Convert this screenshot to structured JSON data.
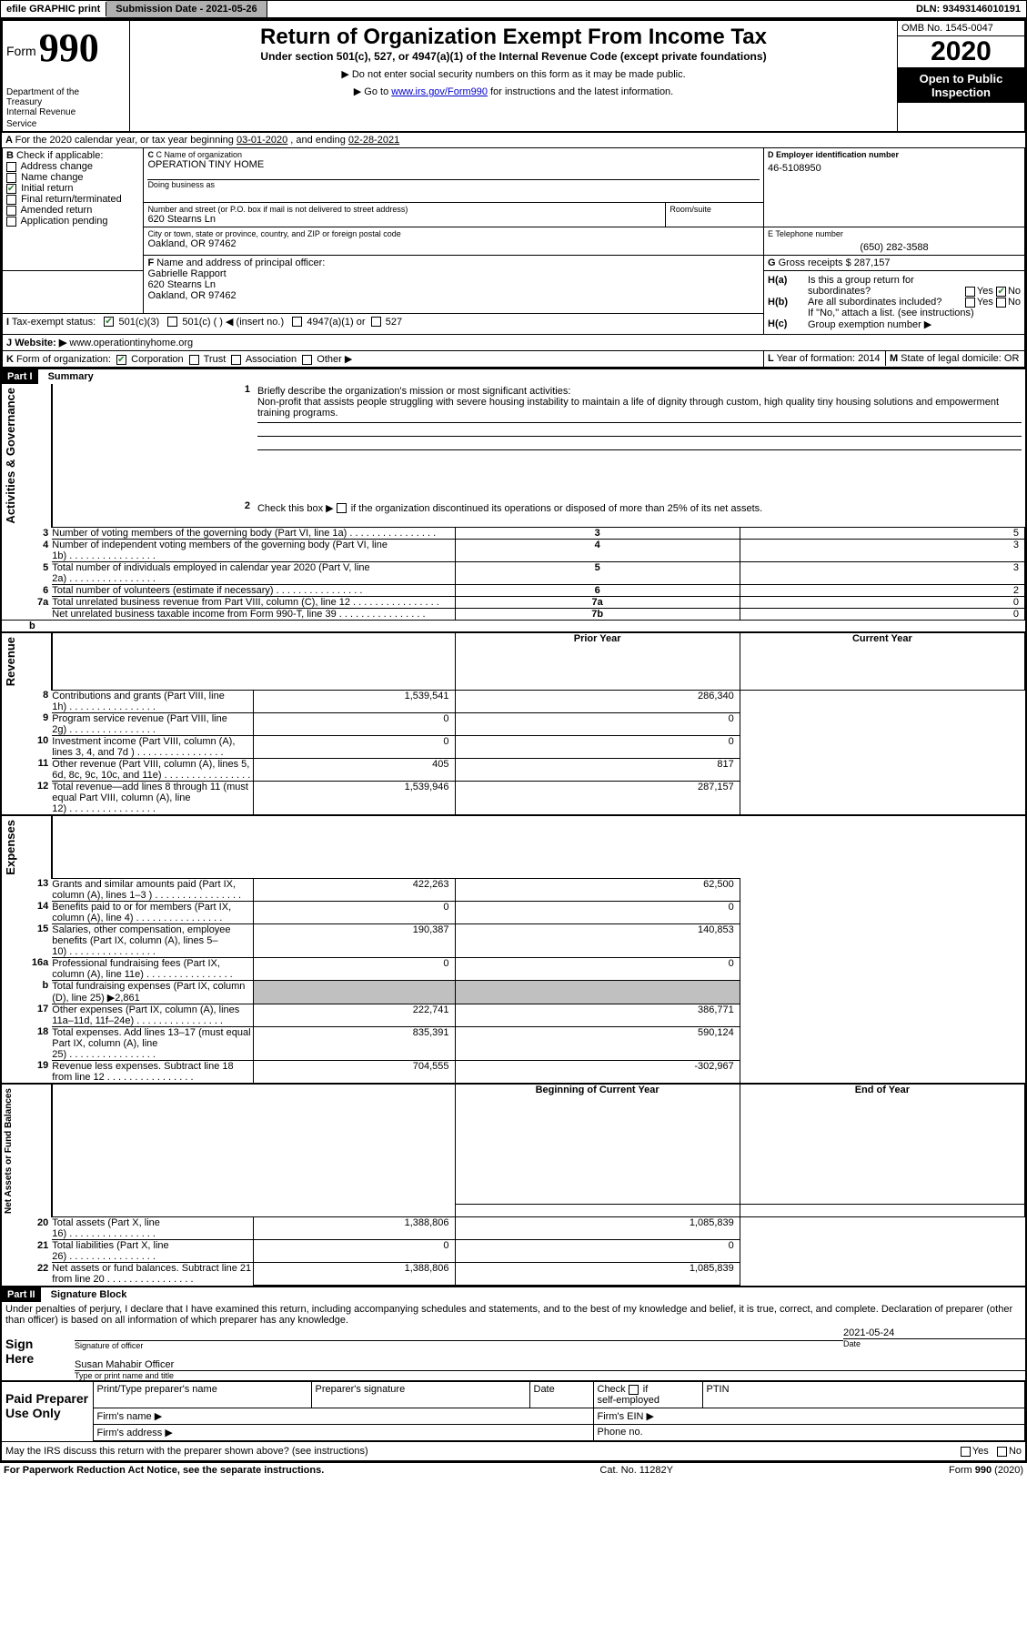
{
  "topbar": {
    "efile": "efile GRAPHIC print",
    "submission_label": "Submission Date - ",
    "submission_date": "2021-05-26",
    "dln_label": "DLN: ",
    "dln": "93493146010191"
  },
  "header": {
    "form_word": "Form",
    "form_no": "990",
    "dept1": "Department of the",
    "dept2": "Treasury",
    "dept3": "Internal Revenue",
    "dept4": "Service",
    "title": "Return of Organization Exempt From Income Tax",
    "subtitle": "Under section 501(c), 527, or 4947(a)(1) of the Internal Revenue Code (except private foundations)",
    "instr1": "Do not enter social security numbers on this form as it may be made public.",
    "instr2a": "Go to ",
    "instr2_link": "www.irs.gov/Form990",
    "instr2b": " for instructions and the latest information.",
    "omb": "OMB No. 1545-0047",
    "year": "2020",
    "open1": "Open to Public",
    "open2": "Inspection"
  },
  "line_a": {
    "text": "For the 2020 calendar year, or tax year beginning ",
    "begin": "03-01-2020",
    "mid": " , and ending ",
    "end": "02-28-2021"
  },
  "box_b": {
    "label": "B",
    "check_label": "Check if applicable:",
    "opts": [
      "Address change",
      "Name change",
      "Initial return",
      "Final return/terminated",
      "Amended return",
      "Application pending"
    ],
    "checked_idx": 2
  },
  "box_c": {
    "name_label": "C Name of organization",
    "name": "OPERATION TINY HOME",
    "dba_label": "Doing business as",
    "dba": "",
    "street_label": "Number and street (or P.O. box if mail is not delivered to street address)",
    "room_label": "Room/suite",
    "street": "620 Stearns Ln",
    "city_label": "City or town, state or province, country, and ZIP or foreign postal code",
    "city": "Oakland, OR  97462"
  },
  "box_d": {
    "label": "D Employer identification number",
    "val": "46-5108950"
  },
  "box_e": {
    "label": "E Telephone number",
    "val": "(650) 282-3588"
  },
  "box_g": {
    "label": "G",
    "text": "Gross receipts $ ",
    "val": "287,157"
  },
  "box_f": {
    "label": "F",
    "text": "Name and address of principal officer:",
    "name": "Gabrielle Rapport",
    "street": "620 Stearns Ln",
    "city": "Oakland, OR  97462"
  },
  "box_h": {
    "a_label": "H(a)",
    "a_text": "Is this a group return for",
    "a_text2": "subordinates?",
    "b_label": "H(b)",
    "b_text": "Are all subordinates included?",
    "b_note": "If \"No,\" attach a list. (see instructions)",
    "c_label": "H(c)",
    "c_text": "Group exemption number ▶",
    "yes": "Yes",
    "no": "No"
  },
  "box_i": {
    "label": "I",
    "text": "Tax-exempt status:",
    "o1": "501(c)(3)",
    "o2": "501(c) (  ) ◀ (insert no.)",
    "o3": "4947(a)(1) or",
    "o4": "527"
  },
  "box_j": {
    "label": "J",
    "text": "Website: ▶",
    "val": "www.operationtinyhome.org"
  },
  "box_k": {
    "label": "K",
    "text": "Form of organization:",
    "o1": "Corporation",
    "o2": "Trust",
    "o3": "Association",
    "o4": "Other ▶"
  },
  "box_l": {
    "label": "L",
    "text": "Year of formation: ",
    "val": "2014"
  },
  "box_m": {
    "label": "M",
    "text": "State of legal domicile: ",
    "val": "OR"
  },
  "part1": {
    "tag": "Part I",
    "title": "Summary",
    "side1": "Activities & Governance",
    "side2": "Revenue",
    "side3": "Expenses",
    "side4": "Net Assets or Fund Balances",
    "l1_no": "1",
    "l1": "Briefly describe the organization's mission or most significant activities:",
    "l1_val": "Non-profit that assists people struggling with severe housing instability to maintain a life of dignity through custom, high quality tiny housing solutions and empowerment training programs.",
    "l2_no": "2",
    "l2": "Check this box ▶",
    "l2b": " if the organization discontinued its operations or disposed of more than 25% of its net assets.",
    "rows_gov": [
      {
        "no": "3",
        "txt": "Number of voting members of the governing body (Part VI, line 1a)",
        "box": "3",
        "val": "5"
      },
      {
        "no": "4",
        "txt": "Number of independent voting members of the governing body (Part VI, line 1b)",
        "box": "4",
        "val": "3"
      },
      {
        "no": "5",
        "txt": "Total number of individuals employed in calendar year 2020 (Part V, line 2a)",
        "box": "5",
        "val": "3"
      },
      {
        "no": "6",
        "txt": "Total number of volunteers (estimate if necessary)",
        "box": "6",
        "val": "2"
      },
      {
        "no": "7a",
        "txt": "Total unrelated business revenue from Part VIII, column (C), line 12",
        "box": "7a",
        "val": "0"
      },
      {
        "no": "",
        "txt": "Net unrelated business taxable income from Form 990-T, line 39",
        "box": "7b",
        "val": "0"
      }
    ],
    "b_label": "b",
    "col_prior": "Prior Year",
    "col_curr": "Current Year",
    "rows_rev": [
      {
        "no": "8",
        "txt": "Contributions and grants (Part VIII, line 1h)",
        "p": "1,539,541",
        "c": "286,340"
      },
      {
        "no": "9",
        "txt": "Program service revenue (Part VIII, line 2g)",
        "p": "0",
        "c": "0"
      },
      {
        "no": "10",
        "txt": "Investment income (Part VIII, column (A), lines 3, 4, and 7d )",
        "p": "0",
        "c": "0"
      },
      {
        "no": "11",
        "txt": "Other revenue (Part VIII, column (A), lines 5, 6d, 8c, 9c, 10c, and 11e)",
        "p": "405",
        "c": "817"
      },
      {
        "no": "12",
        "txt": "Total revenue—add lines 8 through 11 (must equal Part VIII, column (A), line 12)",
        "p": "1,539,946",
        "c": "287,157"
      }
    ],
    "rows_exp": [
      {
        "no": "13",
        "txt": "Grants and similar amounts paid (Part IX, column (A), lines 1–3 )",
        "p": "422,263",
        "c": "62,500"
      },
      {
        "no": "14",
        "txt": "Benefits paid to or for members (Part IX, column (A), line 4)",
        "p": "0",
        "c": "0"
      },
      {
        "no": "15",
        "txt": "Salaries, other compensation, employee benefits (Part IX, column (A), lines 5–10)",
        "p": "190,387",
        "c": "140,853"
      },
      {
        "no": "16a",
        "txt": "Professional fundraising fees (Part IX, column (A), line 11e)",
        "p": "0",
        "c": "0"
      },
      {
        "no": "b",
        "txt": "Total fundraising expenses (Part IX, column (D), line 25) ▶2,861",
        "p": "",
        "c": "",
        "shade": true
      },
      {
        "no": "17",
        "txt": "Other expenses (Part IX, column (A), lines 11a–11d, 11f–24e)",
        "p": "222,741",
        "c": "386,771"
      },
      {
        "no": "18",
        "txt": "Total expenses. Add lines 13–17 (must equal Part IX, column (A), line 25)",
        "p": "835,391",
        "c": "590,124"
      },
      {
        "no": "19",
        "txt": "Revenue less expenses. Subtract line 18 from line 12",
        "p": "704,555",
        "c": "-302,967"
      }
    ],
    "col_begin": "Beginning of Current Year",
    "col_end": "End of Year",
    "rows_net": [
      {
        "no": "20",
        "txt": "Total assets (Part X, line 16)",
        "p": "1,388,806",
        "c": "1,085,839"
      },
      {
        "no": "21",
        "txt": "Total liabilities (Part X, line 26)",
        "p": "0",
        "c": "0"
      },
      {
        "no": "22",
        "txt": "Net assets or fund balances. Subtract line 21 from line 20",
        "p": "1,388,806",
        "c": "1,085,839"
      }
    ]
  },
  "part2": {
    "tag": "Part II",
    "title": "Signature Block",
    "perjury": "Under penalties of perjury, I declare that I have examined this return, including accompanying schedules and statements, and to the best of my knowledge and belief, it is true, correct, and complete. Declaration of preparer (other than officer) is based on all information of which preparer has any knowledge.",
    "sign_here": "Sign Here",
    "sig_officer": "Signature of officer",
    "sig_date_label": "Date",
    "sig_date": "2021-05-24",
    "sig_name": "Susan Mahabir  Officer",
    "sig_type": "Type or print name and title",
    "paid": "Paid Preparer Use Only",
    "pp_name": "Print/Type preparer's name",
    "pp_sig": "Preparer's signature",
    "pp_date": "Date",
    "pp_check": "Check",
    "pp_if": " if",
    "pp_self": "self-employed",
    "pp_ptin": "PTIN",
    "pp_firm": "Firm's name  ▶",
    "pp_ein": "Firm's EIN ▶",
    "pp_addr": "Firm's address ▶",
    "pp_phone": "Phone no.",
    "discuss": "May the IRS discuss this return with the preparer shown above? (see instructions)",
    "yes": "Yes",
    "no": "No"
  },
  "footer": {
    "pra": "For Paperwork Reduction Act Notice, see the separate instructions.",
    "cat": "Cat. No. 11282Y",
    "form": "Form 990 (2020)"
  }
}
